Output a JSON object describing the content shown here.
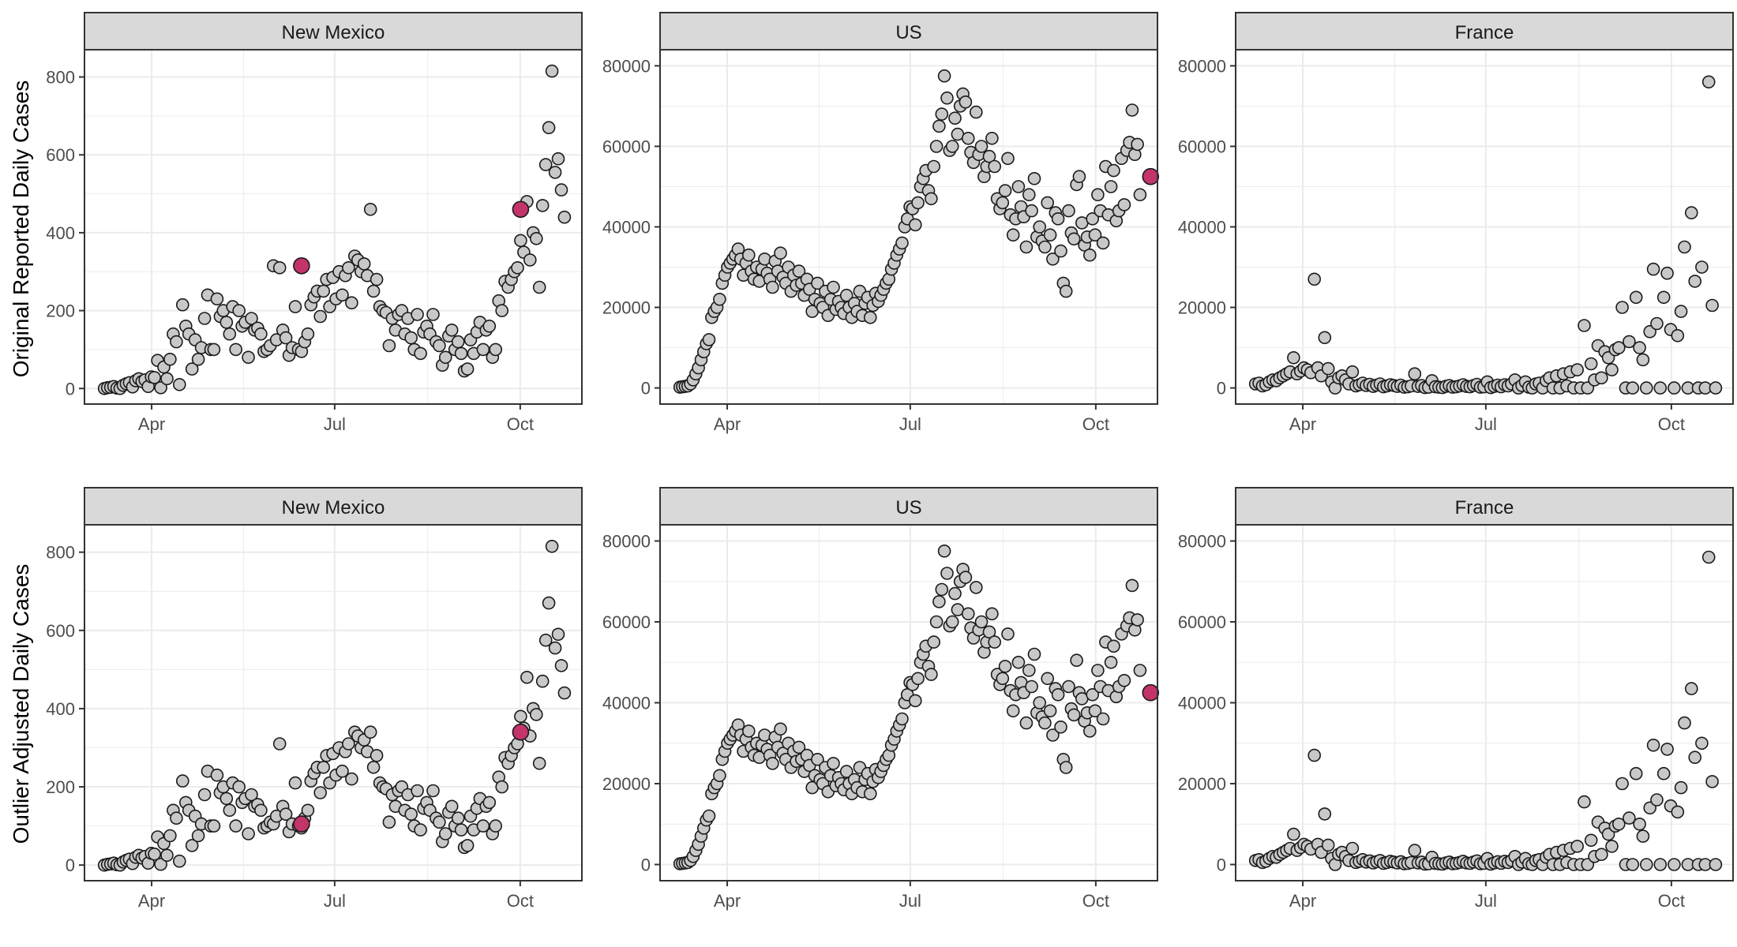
{
  "figure": {
    "row_labels": [
      "Original Reported Daily Cases",
      "Outlier Adjusted Daily Cases"
    ],
    "colors": {
      "point_fill": "#c8c8c8",
      "point_stroke": "#1a1a1a",
      "highlight_fill": "#c2346a",
      "strip_fill": "#d9d9d9",
      "grid": "#ebebeb"
    }
  },
  "chart_data": [
    {
      "type": "scatter",
      "row": 0,
      "col": 0,
      "title": "New Mexico",
      "ylabel": "Original Reported Daily Cases",
      "ylim": [
        -40,
        870
      ],
      "yticks": [
        0,
        200,
        400,
        600,
        800
      ],
      "xticks": [
        "Apr",
        "Jul",
        "Oct"
      ],
      "series": [
        {
          "values": [
            0,
            2,
            3,
            5,
            1,
            0,
            8,
            12,
            15,
            4,
            20,
            25,
            18,
            22,
            5,
            30,
            28,
            72,
            2,
            55,
            25,
            75,
            140,
            120,
            10,
            215,
            160,
            140,
            50,
            125,
            75,
            105,
            180,
            240,
            100,
            100,
            230,
            185,
            200,
            170,
            140,
            210,
            100,
            200,
            160,
            170,
            80,
            180,
            150,
            155,
            140,
            95,
            100,
            110,
            315,
            125,
            310,
            150,
            130,
            85,
            105,
            210,
            100,
            95,
            120,
            140,
            215,
            235,
            250,
            185,
            250,
            280,
            210,
            285,
            230,
            300,
            240,
            290,
            310,
            220,
            340,
            330,
            300,
            320,
            290,
            460,
            250,
            280,
            210,
            200,
            195,
            110,
            180,
            150,
            190,
            200,
            140,
            180,
            130,
            100,
            190,
            90,
            145,
            160,
            140,
            190,
            120,
            110,
            60,
            80,
            135,
            150,
            100,
            120,
            90,
            45,
            50,
            125,
            90,
            145,
            170,
            100,
            150,
            160,
            80,
            100,
            225,
            200,
            275,
            260,
            280,
            300,
            310,
            380,
            350,
            480,
            330,
            400,
            385,
            260,
            470,
            575,
            670,
            815,
            555,
            590,
            510,
            440
          ]
        }
      ],
      "highlights": [
        {
          "date_index": 63,
          "value": 315
        },
        {
          "date_index": 133,
          "value": 460
        }
      ]
    },
    {
      "type": "scatter",
      "row": 0,
      "col": 1,
      "title": "US",
      "ylim": [
        -4000,
        84000
      ],
      "yticks": [
        0,
        20000,
        40000,
        60000,
        80000
      ],
      "xticks": [
        "Apr",
        "Jul",
        "Oct"
      ],
      "series": [
        {
          "values": [
            200,
            300,
            400,
            500,
            1000,
            2000,
            3500,
            5000,
            7000,
            9000,
            11000,
            12000,
            17500,
            19000,
            20000,
            22000,
            26000,
            28000,
            30000,
            31000,
            32000,
            33000,
            34500,
            32000,
            28000,
            31000,
            33000,
            29000,
            27000,
            30000,
            26500,
            29500,
            32000,
            28500,
            27000,
            25000,
            31500,
            29000,
            33500,
            27500,
            26000,
            30000,
            24000,
            28000,
            25500,
            29000,
            26000,
            23000,
            27000,
            24500,
            19000,
            22000,
            26000,
            21000,
            20000,
            24000,
            18000,
            22000,
            25000,
            19500,
            21500,
            20000,
            18500,
            23000,
            20000,
            17500,
            21000,
            19000,
            24000,
            18000,
            21000,
            22500,
            17500,
            20500,
            23500,
            21500,
            23000,
            24500,
            26000,
            27000,
            29500,
            31000,
            33000,
            34500,
            36000,
            40000,
            42000,
            45000,
            44500,
            40500,
            46000,
            50000,
            52000,
            54000,
            49000,
            47000,
            55000,
            60000,
            65000,
            68000,
            77500,
            72000,
            59000,
            60000,
            67000,
            63000,
            70000,
            73000,
            71000,
            62000,
            58500,
            56000,
            68500,
            58000,
            60000,
            52500,
            55000,
            57500,
            62000,
            55000,
            47000,
            44500,
            46000,
            49000,
            57000,
            43000,
            38000,
            42000,
            50000,
            45000,
            42500,
            35000,
            48000,
            44000,
            52000,
            37500,
            40000,
            36500,
            35000,
            46000,
            38000,
            32000,
            43500,
            42000,
            34000,
            26000,
            24000,
            44000,
            38500,
            37000,
            50500,
            52500,
            41000,
            35500,
            37500,
            33000,
            42000,
            38000,
            48000,
            44000,
            36000,
            55000,
            43000,
            50000,
            54000,
            41500,
            44000,
            57000,
            45500,
            59000,
            61000,
            69000,
            58000,
            60500,
            48000
          ]
        }
      ],
      "highlights": [
        {
          "date_index": 178,
          "value": 52500
        }
      ]
    },
    {
      "type": "scatter",
      "row": 0,
      "col": 2,
      "title": "France",
      "ylim": [
        -4000,
        84000
      ],
      "yticks": [
        0,
        20000,
        40000,
        60000,
        80000
      ],
      "xticks": [
        "Apr",
        "Jul",
        "Oct"
      ],
      "series": [
        {
          "values": [
            1000,
            1200,
            500,
            800,
            1500,
            2000,
            1800,
            2500,
            3000,
            3500,
            4000,
            7500,
            3500,
            4200,
            5000,
            4500,
            3800,
            27000,
            5000,
            3000,
            12500,
            4800,
            1500,
            0,
            2500,
            3000,
            2000,
            1000,
            4000,
            500,
            800,
            1200,
            600,
            900,
            400,
            700,
            1000,
            300,
            500,
            800,
            600,
            400,
            700,
            200,
            300,
            500,
            3500,
            400,
            600,
            100,
            200,
            1800,
            300,
            200,
            100,
            400,
            600,
            200,
            300,
            500,
            800,
            400,
            300,
            600,
            900,
            200,
            300,
            1500,
            100,
            400,
            700,
            300,
            800,
            500,
            1000,
            2000,
            0,
            600,
            1500,
            200,
            0,
            1000,
            1200,
            0,
            1800,
            2500,
            0,
            3000,
            0,
            3500,
            500,
            4000,
            0,
            4500,
            0,
            15500,
            0,
            6000,
            2000,
            10500,
            2500,
            9000,
            7500,
            4500,
            9500,
            10000,
            20000,
            0,
            11500,
            0,
            22500,
            10000,
            7000,
            0,
            14000,
            29500,
            16000,
            0,
            22500,
            28500,
            14500,
            0,
            13000,
            19000,
            35000,
            0,
            43500,
            26500,
            0,
            30000,
            0,
            76000,
            20500,
            0
          ]
        }
      ],
      "highlights": []
    },
    {
      "type": "scatter",
      "row": 1,
      "col": 0,
      "title": "New Mexico",
      "ylabel": "Outlier Adjusted Daily Cases",
      "ylim": [
        -40,
        870
      ],
      "yticks": [
        0,
        200,
        400,
        600,
        800
      ],
      "xticks": [
        "Apr",
        "Jul",
        "Oct"
      ],
      "series": [
        {
          "values": [
            0,
            2,
            3,
            5,
            1,
            0,
            8,
            12,
            15,
            4,
            20,
            25,
            18,
            22,
            5,
            30,
            28,
            72,
            2,
            55,
            25,
            75,
            140,
            120,
            10,
            215,
            160,
            140,
            50,
            125,
            75,
            105,
            180,
            240,
            100,
            100,
            230,
            185,
            200,
            170,
            140,
            210,
            100,
            200,
            160,
            170,
            80,
            180,
            150,
            155,
            140,
            95,
            100,
            110,
            105,
            125,
            310,
            150,
            130,
            85,
            105,
            210,
            100,
            95,
            120,
            140,
            215,
            235,
            250,
            185,
            250,
            280,
            210,
            285,
            230,
            300,
            240,
            290,
            310,
            220,
            340,
            330,
            300,
            320,
            290,
            340,
            250,
            280,
            210,
            200,
            195,
            110,
            180,
            150,
            190,
            200,
            140,
            180,
            130,
            100,
            190,
            90,
            145,
            160,
            140,
            190,
            120,
            110,
            60,
            80,
            135,
            150,
            100,
            120,
            90,
            45,
            50,
            125,
            90,
            145,
            170,
            100,
            150,
            160,
            80,
            100,
            225,
            200,
            275,
            260,
            280,
            300,
            310,
            380,
            350,
            480,
            330,
            400,
            385,
            260,
            470,
            575,
            670,
            815,
            555,
            590,
            510,
            440
          ]
        }
      ],
      "highlights": [
        {
          "date_index": 63,
          "value": 105
        },
        {
          "date_index": 133,
          "value": 340
        }
      ]
    },
    {
      "type": "scatter",
      "row": 1,
      "col": 1,
      "title": "US",
      "ylim": [
        -4000,
        84000
      ],
      "yticks": [
        0,
        20000,
        40000,
        60000,
        80000
      ],
      "xticks": [
        "Apr",
        "Jul",
        "Oct"
      ],
      "series": [
        {
          "values": [
            200,
            300,
            400,
            500,
            1000,
            2000,
            3500,
            5000,
            7000,
            9000,
            11000,
            12000,
            17500,
            19000,
            20000,
            22000,
            26000,
            28000,
            30000,
            31000,
            32000,
            33000,
            34500,
            32000,
            28000,
            31000,
            33000,
            29000,
            27000,
            30000,
            26500,
            29500,
            32000,
            28500,
            27000,
            25000,
            31500,
            29000,
            33500,
            27500,
            26000,
            30000,
            24000,
            28000,
            25500,
            29000,
            26000,
            23000,
            27000,
            24500,
            19000,
            22000,
            26000,
            21000,
            20000,
            24000,
            18000,
            22000,
            25000,
            19500,
            21500,
            20000,
            18500,
            23000,
            20000,
            17500,
            21000,
            19000,
            24000,
            18000,
            21000,
            22500,
            17500,
            20500,
            23500,
            21500,
            23000,
            24500,
            26000,
            27000,
            29500,
            31000,
            33000,
            34500,
            36000,
            40000,
            42000,
            45000,
            44500,
            40500,
            46000,
            50000,
            52000,
            54000,
            49000,
            47000,
            55000,
            60000,
            65000,
            68000,
            77500,
            72000,
            59000,
            60000,
            67000,
            63000,
            70000,
            73000,
            71000,
            62000,
            58500,
            56000,
            68500,
            58000,
            60000,
            52500,
            55000,
            57500,
            62000,
            55000,
            47000,
            44500,
            46000,
            49000,
            57000,
            43000,
            38000,
            42000,
            50000,
            45000,
            42500,
            35000,
            48000,
            44000,
            52000,
            37500,
            40000,
            36500,
            35000,
            46000,
            38000,
            32000,
            43500,
            42000,
            34000,
            26000,
            24000,
            44000,
            38500,
            37000,
            50500,
            42500,
            41000,
            35500,
            37500,
            33000,
            42000,
            38000,
            48000,
            44000,
            36000,
            55000,
            43000,
            50000,
            54000,
            41500,
            44000,
            57000,
            45500,
            59000,
            61000,
            69000,
            58000,
            60500,
            48000
          ]
        }
      ],
      "highlights": [
        {
          "date_index": 178,
          "value": 42500
        }
      ]
    },
    {
      "type": "scatter",
      "row": 1,
      "col": 2,
      "title": "France",
      "ylim": [
        -4000,
        84000
      ],
      "yticks": [
        0,
        20000,
        40000,
        60000,
        80000
      ],
      "xticks": [
        "Apr",
        "Jul",
        "Oct"
      ],
      "series": [
        {
          "values": [
            1000,
            1200,
            500,
            800,
            1500,
            2000,
            1800,
            2500,
            3000,
            3500,
            4000,
            7500,
            3500,
            4200,
            5000,
            4500,
            3800,
            27000,
            5000,
            3000,
            12500,
            4800,
            1500,
            0,
            2500,
            3000,
            2000,
            1000,
            4000,
            500,
            800,
            1200,
            600,
            900,
            400,
            700,
            1000,
            300,
            500,
            800,
            600,
            400,
            700,
            200,
            300,
            500,
            3500,
            400,
            600,
            100,
            200,
            1800,
            300,
            200,
            100,
            400,
            600,
            200,
            300,
            500,
            800,
            400,
            300,
            600,
            900,
            200,
            300,
            1500,
            100,
            400,
            700,
            300,
            800,
            500,
            1000,
            2000,
            0,
            600,
            1500,
            200,
            0,
            1000,
            1200,
            0,
            1800,
            2500,
            0,
            3000,
            0,
            3500,
            500,
            4000,
            0,
            4500,
            0,
            15500,
            0,
            6000,
            2000,
            10500,
            2500,
            9000,
            7500,
            4500,
            9500,
            10000,
            20000,
            0,
            11500,
            0,
            22500,
            10000,
            7000,
            0,
            14000,
            29500,
            16000,
            0,
            22500,
            28500,
            14500,
            0,
            13000,
            19000,
            35000,
            0,
            43500,
            26500,
            0,
            30000,
            0,
            76000,
            20500,
            0
          ]
        }
      ],
      "highlights": []
    }
  ]
}
